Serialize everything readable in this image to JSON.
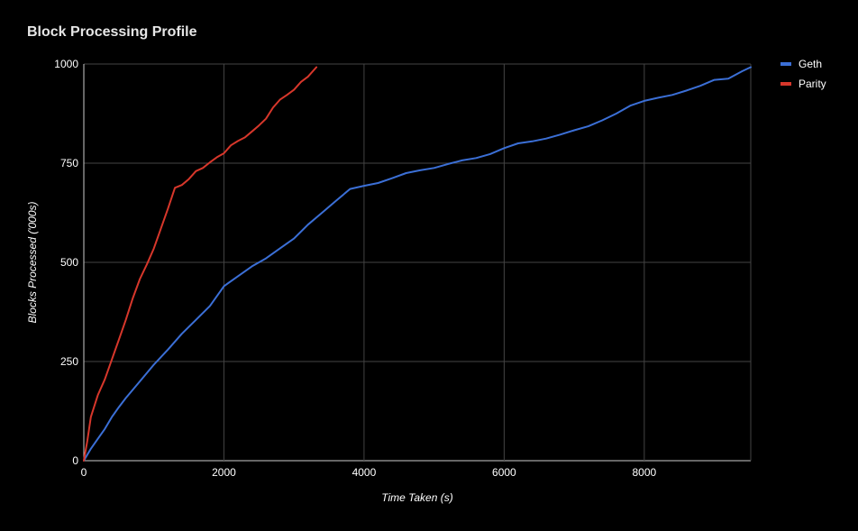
{
  "chart_data": {
    "type": "line",
    "title": "Block Processing Profile",
    "xlabel": "Time Taken (s)",
    "ylabel": "Blocks Processed ('000s)",
    "xlim": [
      0,
      9520
    ],
    "ylim": [
      0,
      1000
    ],
    "x_ticks": [
      0,
      2000,
      4000,
      6000,
      8000
    ],
    "y_ticks": [
      0,
      250,
      500,
      750,
      1000
    ],
    "grid": true,
    "legend_position": "top-right",
    "series": [
      {
        "name": "Geth",
        "color": "#3b6fd6",
        "points": [
          [
            0,
            0
          ],
          [
            100,
            30
          ],
          [
            200,
            55
          ],
          [
            300,
            80
          ],
          [
            400,
            110
          ],
          [
            500,
            135
          ],
          [
            600,
            158
          ],
          [
            800,
            200
          ],
          [
            1000,
            242
          ],
          [
            1200,
            280
          ],
          [
            1400,
            320
          ],
          [
            1600,
            355
          ],
          [
            1800,
            390
          ],
          [
            2000,
            440
          ],
          [
            2200,
            465
          ],
          [
            2400,
            490
          ],
          [
            2600,
            510
          ],
          [
            2800,
            535
          ],
          [
            3000,
            560
          ],
          [
            3200,
            595
          ],
          [
            3400,
            625
          ],
          [
            3600,
            655
          ],
          [
            3800,
            685
          ],
          [
            4000,
            693
          ],
          [
            4200,
            700
          ],
          [
            4400,
            712
          ],
          [
            4600,
            725
          ],
          [
            4800,
            732
          ],
          [
            5000,
            738
          ],
          [
            5200,
            748
          ],
          [
            5400,
            757
          ],
          [
            5600,
            763
          ],
          [
            5800,
            773
          ],
          [
            6000,
            788
          ],
          [
            6200,
            800
          ],
          [
            6400,
            805
          ],
          [
            6600,
            812
          ],
          [
            6800,
            822
          ],
          [
            7000,
            833
          ],
          [
            7200,
            843
          ],
          [
            7400,
            858
          ],
          [
            7600,
            875
          ],
          [
            7800,
            895
          ],
          [
            8000,
            907
          ],
          [
            8200,
            915
          ],
          [
            8400,
            922
          ],
          [
            8600,
            933
          ],
          [
            8800,
            945
          ],
          [
            9000,
            960
          ],
          [
            9200,
            963
          ],
          [
            9400,
            982
          ],
          [
            9520,
            992
          ]
        ]
      },
      {
        "name": "Parity",
        "color": "#d7372b",
        "points": [
          [
            0,
            0
          ],
          [
            50,
            50
          ],
          [
            100,
            110
          ],
          [
            200,
            165
          ],
          [
            300,
            205
          ],
          [
            400,
            255
          ],
          [
            500,
            305
          ],
          [
            600,
            355
          ],
          [
            700,
            410
          ],
          [
            800,
            458
          ],
          [
            900,
            495
          ],
          [
            1000,
            535
          ],
          [
            1100,
            585
          ],
          [
            1200,
            635
          ],
          [
            1300,
            688
          ],
          [
            1400,
            695
          ],
          [
            1500,
            710
          ],
          [
            1600,
            730
          ],
          [
            1700,
            738
          ],
          [
            1800,
            752
          ],
          [
            1900,
            765
          ],
          [
            2000,
            775
          ],
          [
            2100,
            795
          ],
          [
            2200,
            806
          ],
          [
            2300,
            815
          ],
          [
            2400,
            830
          ],
          [
            2500,
            845
          ],
          [
            2600,
            862
          ],
          [
            2700,
            890
          ],
          [
            2800,
            910
          ],
          [
            2900,
            922
          ],
          [
            3000,
            935
          ],
          [
            3100,
            955
          ],
          [
            3200,
            968
          ],
          [
            3320,
            992
          ]
        ]
      }
    ]
  }
}
